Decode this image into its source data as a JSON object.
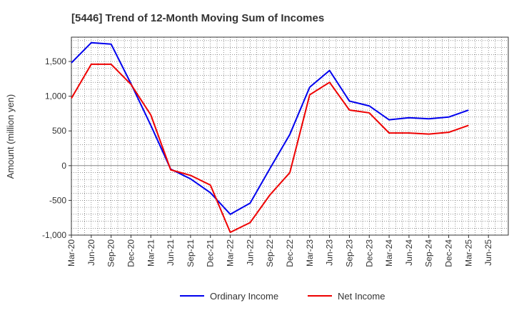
{
  "chart_data": {
    "type": "line",
    "title": "[5446]  Trend of 12-Month Moving Sum of Incomes",
    "xlabel": "",
    "ylabel": "Amount (million yen)",
    "ylim": [
      -1000,
      1850
    ],
    "yticks": [
      -1000,
      -500,
      0,
      500,
      1000,
      1500
    ],
    "ytick_labels": [
      "-1,000",
      "-500",
      "0",
      "500",
      "1,000",
      "1,500"
    ],
    "x": [
      "Mar-20",
      "Jun-20",
      "Sep-20",
      "Dec-20",
      "Mar-21",
      "Jun-21",
      "Sep-21",
      "Dec-21",
      "Mar-22",
      "Jun-22",
      "Sep-22",
      "Dec-22",
      "Mar-23",
      "Jun-23",
      "Sep-23",
      "Dec-23",
      "Mar-24",
      "Jun-24",
      "Sep-24",
      "Dec-24",
      "Mar-25",
      "Jun-25"
    ],
    "grid": true,
    "legend_position": "bottom",
    "series": [
      {
        "name": "Ordinary Income",
        "color": "#0000ee",
        "values": [
          1480,
          1770,
          1750,
          1180,
          580,
          -50,
          -190,
          -390,
          -700,
          -540,
          -40,
          450,
          1130,
          1370,
          930,
          860,
          660,
          690,
          675,
          700,
          800,
          null
        ]
      },
      {
        "name": "Net Income",
        "color": "#ee0000",
        "values": [
          970,
          1460,
          1460,
          1170,
          730,
          -60,
          -140,
          -280,
          -960,
          -820,
          -420,
          -100,
          1020,
          1200,
          800,
          760,
          470,
          470,
          455,
          480,
          580,
          null
        ]
      }
    ]
  }
}
